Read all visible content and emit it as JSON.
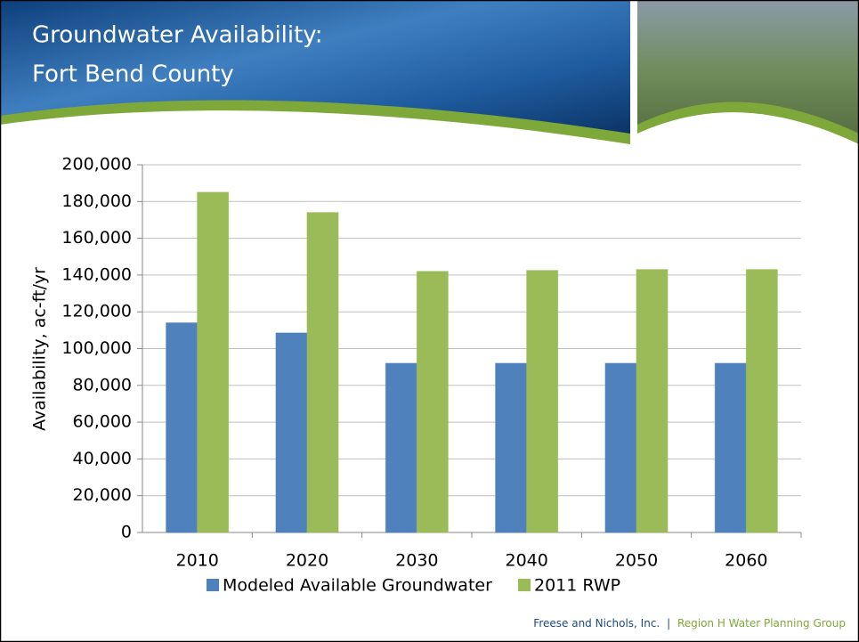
{
  "slide": {
    "title_lines": [
      "Groundwater Availability:",
      "Fort Bend County"
    ],
    "footer": [
      "Freese and Nichols, Inc.",
      "|",
      "Region H Water Planning Group"
    ]
  },
  "chart_data": {
    "type": "bar",
    "y_label": "Availability, ac-ft/yr",
    "categories": [
      "2010",
      "2020",
      "2030",
      "2040",
      "2050",
      "2060"
    ],
    "series": [
      {
        "name": "Modeled Available Groundwater",
        "color": "#4f81bd",
        "values": [
          114000,
          108500,
          92000,
          92000,
          92000,
          92000
        ]
      },
      {
        "name": "2011 RWP",
        "color": "#9bbb59",
        "values": [
          185000,
          174000,
          142000,
          142500,
          143000,
          143000
        ]
      }
    ],
    "ylim": [
      0,
      200000
    ],
    "yticks": [
      0,
      {
        "value": 20000,
        "label": "20,000"
      },
      {
        "value": 40000,
        "label": "40,000"
      },
      {
        "value": 60000,
        "label": "60,000"
      },
      {
        "value": 80000,
        "label": "80,000"
      },
      {
        "value": 100000,
        "label": "100,000"
      },
      {
        "value": 120000,
        "label": "120,000"
      },
      {
        "value": 140000,
        "label": "140,000"
      },
      {
        "value": 160000,
        "label": "160,000"
      },
      {
        "value": 180000,
        "label": "180,000"
      },
      {
        "value": 200000,
        "label": "200,000"
      }
    ],
    "grid": true,
    "legend": "bottom"
  }
}
